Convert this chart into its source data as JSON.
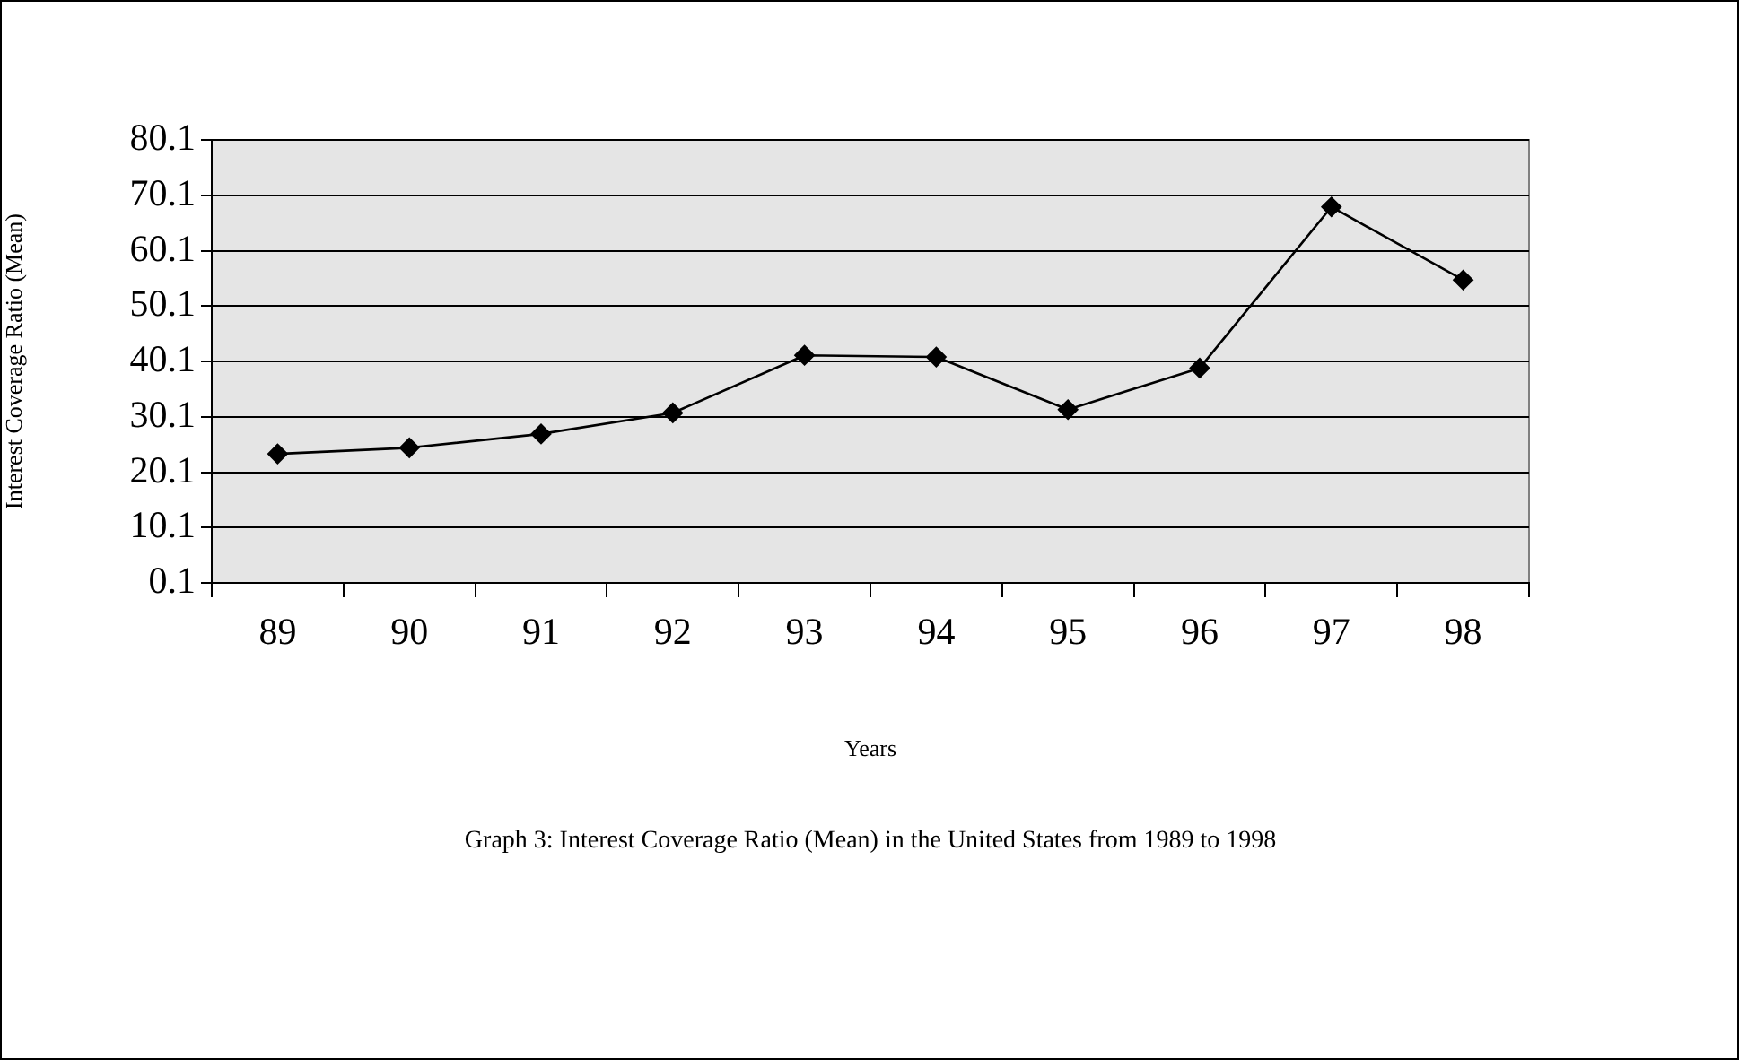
{
  "chart_data": {
    "type": "line",
    "xlabel": "Years",
    "ylabel": "Interest Coverage Ratio (Mean)",
    "categories": [
      "89",
      "90",
      "91",
      "92",
      "93",
      "94",
      "95",
      "96",
      "97",
      "98"
    ],
    "series": [
      {
        "color": "#000000",
        "values": [
          23.4,
          24.5,
          27.0,
          30.8,
          41.2,
          40.9,
          31.4,
          38.9,
          68.0,
          54.8
        ]
      }
    ],
    "ylim": [
      0.1,
      80.1
    ],
    "yticks": [
      0.1,
      10.1,
      20.1,
      30.1,
      40.1,
      50.1,
      60.1,
      70.1,
      80.1
    ],
    "grid": "y",
    "legend": false,
    "marker": "diamond",
    "line_style": "solid",
    "annotations": [
      "Graph 3: Interest Coverage Ratio (Mean) in the United States from 1989 to 1998"
    ]
  }
}
